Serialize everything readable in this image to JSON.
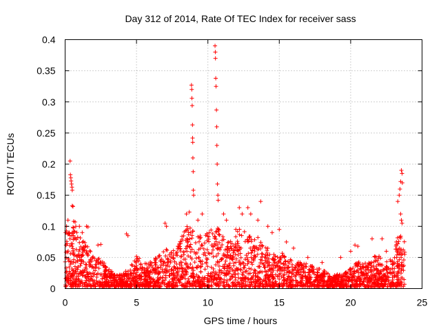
{
  "chart_data": {
    "type": "scatter",
    "title": "Day 312 of 2014, Rate Of TEC Index for receiver sass",
    "xlabel": "GPS time / hours",
    "ylabel": "ROTI / TECUs",
    "xlim": [
      0,
      25
    ],
    "ylim": [
      0,
      0.4
    ],
    "x_ticks": [
      0,
      5,
      10,
      15,
      20,
      25
    ],
    "y_ticks": [
      0,
      0.05,
      0.1,
      0.15,
      0.2,
      0.25,
      0.3,
      0.35,
      0.4
    ],
    "x_tick_labels": [
      "0",
      "5",
      "10",
      "15",
      "20",
      "25"
    ],
    "y_tick_labels": [
      "0",
      "0.05",
      "0.1",
      "0.15",
      "0.2",
      "0.25",
      "0.3",
      "0.35",
      "0.4"
    ],
    "grid": true,
    "marker": "+",
    "color": "#ff0000",
    "envelope_profile": {
      "description": "approximate upper envelope of dense point cloud (hours, ROTI)",
      "x": [
        0,
        0.5,
        1,
        1.5,
        2,
        2.5,
        3,
        3.5,
        4,
        4.5,
        5,
        5.5,
        6,
        6.5,
        7,
        7.5,
        8,
        8.5,
        9,
        9.5,
        10,
        10.5,
        11,
        11.5,
        12,
        12.5,
        13,
        13.5,
        14,
        14.5,
        15,
        15.5,
        16,
        16.5,
        17,
        17.5,
        18,
        18.5,
        19,
        19.5,
        20,
        20.5,
        21,
        21.5,
        22,
        22.5,
        23,
        23.5,
        23.8
      ],
      "y": [
        0.09,
        0.1,
        0.08,
        0.07,
        0.05,
        0.05,
        0.03,
        0.02,
        0.02,
        0.03,
        0.05,
        0.04,
        0.04,
        0.05,
        0.06,
        0.06,
        0.07,
        0.1,
        0.1,
        0.08,
        0.09,
        0.1,
        0.09,
        0.07,
        0.1,
        0.09,
        0.08,
        0.08,
        0.07,
        0.05,
        0.06,
        0.05,
        0.04,
        0.04,
        0.04,
        0.03,
        0.03,
        0.02,
        0.02,
        0.02,
        0.03,
        0.04,
        0.04,
        0.05,
        0.05,
        0.04,
        0.05,
        0.1,
        0.07
      ]
    },
    "points": [
      [
        0.1,
        0.1
      ],
      [
        0.2,
        0.11
      ],
      [
        0.3,
        0.09
      ],
      [
        0.35,
        0.205
      ],
      [
        0.37,
        0.183
      ],
      [
        0.4,
        0.178
      ],
      [
        0.42,
        0.173
      ],
      [
        0.45,
        0.168
      ],
      [
        0.48,
        0.163
      ],
      [
        0.5,
        0.158
      ],
      [
        0.5,
        0.133
      ],
      [
        0.55,
        0.132
      ],
      [
        0.6,
        0.108
      ],
      [
        0.7,
        0.107
      ],
      [
        0.75,
        0.1
      ],
      [
        1.0,
        0.1
      ],
      [
        1.2,
        0.09
      ],
      [
        1.5,
        0.1
      ],
      [
        1.6,
        0.099
      ],
      [
        2.3,
        0.07
      ],
      [
        2.5,
        0.071
      ],
      [
        4.3,
        0.088
      ],
      [
        4.4,
        0.085
      ],
      [
        7.0,
        0.105
      ],
      [
        7.1,
        0.1
      ],
      [
        8.5,
        0.12
      ],
      [
        8.7,
        0.123
      ],
      [
        8.85,
        0.327
      ],
      [
        8.87,
        0.32
      ],
      [
        8.88,
        0.306
      ],
      [
        8.9,
        0.294
      ],
      [
        8.92,
        0.263
      ],
      [
        8.93,
        0.242
      ],
      [
        8.94,
        0.235
      ],
      [
        8.95,
        0.21
      ],
      [
        8.97,
        0.188
      ],
      [
        8.98,
        0.158
      ],
      [
        9.0,
        0.15
      ],
      [
        9.3,
        0.11
      ],
      [
        9.6,
        0.12
      ],
      [
        10.5,
        0.39
      ],
      [
        10.52,
        0.38
      ],
      [
        10.53,
        0.37
      ],
      [
        10.55,
        0.338
      ],
      [
        10.57,
        0.325
      ],
      [
        10.6,
        0.287
      ],
      [
        10.62,
        0.26
      ],
      [
        10.63,
        0.23
      ],
      [
        10.65,
        0.2
      ],
      [
        10.67,
        0.168
      ],
      [
        10.7,
        0.15
      ],
      [
        10.72,
        0.142
      ],
      [
        11.1,
        0.12
      ],
      [
        11.3,
        0.11
      ],
      [
        12.2,
        0.13
      ],
      [
        12.4,
        0.12
      ],
      [
        12.8,
        0.13
      ],
      [
        13.0,
        0.12
      ],
      [
        13.7,
        0.14
      ],
      [
        13.5,
        0.11
      ],
      [
        14.2,
        0.1
      ],
      [
        14.5,
        0.09
      ],
      [
        15.0,
        0.095
      ],
      [
        15.5,
        0.075
      ],
      [
        16.0,
        0.065
      ],
      [
        17.0,
        0.05
      ],
      [
        18.0,
        0.042
      ],
      [
        19.3,
        0.05
      ],
      [
        20.0,
        0.06
      ],
      [
        20.3,
        0.07
      ],
      [
        20.5,
        0.068
      ],
      [
        21.5,
        0.08
      ],
      [
        22.2,
        0.08
      ],
      [
        22.5,
        0.06
      ],
      [
        23.3,
        0.14
      ],
      [
        23.4,
        0.15
      ],
      [
        23.45,
        0.16
      ],
      [
        23.5,
        0.172
      ],
      [
        23.55,
        0.19
      ],
      [
        23.6,
        0.185
      ],
      [
        23.62,
        0.17
      ],
      [
        23.5,
        0.12
      ],
      [
        23.55,
        0.11
      ],
      [
        23.6,
        0.105
      ],
      [
        23.3,
        0.072
      ],
      [
        23.2,
        0.075
      ]
    ]
  }
}
